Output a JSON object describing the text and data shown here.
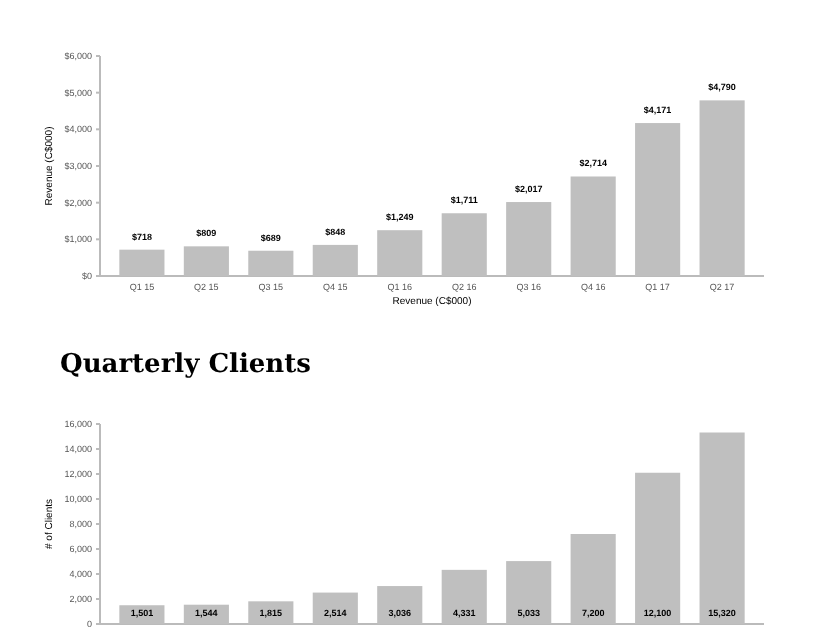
{
  "chart_data": [
    {
      "type": "bar",
      "ylabel": "Revenue (C$000)",
      "xlabel": "Revenue (C$000)",
      "categories": [
        "Q1 15",
        "Q2 15",
        "Q3 15",
        "Q4 15",
        "Q1 16",
        "Q2 16",
        "Q3 16",
        "Q4 16",
        "Q1 17",
        "Q2 17"
      ],
      "values": [
        718,
        809,
        689,
        848,
        1249,
        1711,
        2017,
        2714,
        4171,
        4790
      ],
      "value_labels": [
        "$718",
        "$809",
        "$689",
        "$848",
        "$1,249",
        "$1,711",
        "$2,017",
        "$2,714",
        "$4,171",
        "$4,790"
      ],
      "color": "#bfbfbf",
      "ylim": [
        0,
        6000
      ],
      "yticks": [
        {
          "value": 0,
          "label": "$0"
        },
        {
          "value": 1000,
          "label": "$1,000"
        },
        {
          "value": 2000,
          "label": "$2,000"
        },
        {
          "value": 3000,
          "label": "$3,000"
        },
        {
          "value": 4000,
          "label": "$4,000"
        },
        {
          "value": 5000,
          "label": "$5,000"
        },
        {
          "value": 6000,
          "label": "$6,000"
        }
      ],
      "grid": false
    },
    {
      "type": "bar",
      "title": "Quarterly Clients",
      "ylabel": "# of Clients",
      "categories": [
        null,
        null,
        null,
        null,
        null,
        null,
        null,
        null,
        null,
        null
      ],
      "values": [
        1501,
        1544,
        1815,
        2514,
        3036,
        4331,
        5033,
        7200,
        12100,
        15320
      ],
      "value_labels": [
        "1,501",
        "1,544",
        "1,815",
        "2,514",
        "3,036",
        "4,331",
        "5,033",
        "7,200",
        "12,100",
        "15,320"
      ],
      "color": "#bfbfbf",
      "ylim": [
        0,
        16000
      ],
      "yticks": [
        0,
        {
          "value": 2000,
          "label": "2,000"
        },
        {
          "value": 4000,
          "label": "4,000"
        },
        {
          "value": 6000,
          "label": "6,000"
        },
        {
          "value": 8000,
          "label": "8,000"
        },
        {
          "value": 10000,
          "label": "10,000"
        },
        {
          "value": 12000,
          "label": "12,000"
        },
        {
          "value": 14000,
          "label": "14,000"
        },
        {
          "value": 16000,
          "label": "16,000"
        }
      ],
      "grid": false
    }
  ]
}
